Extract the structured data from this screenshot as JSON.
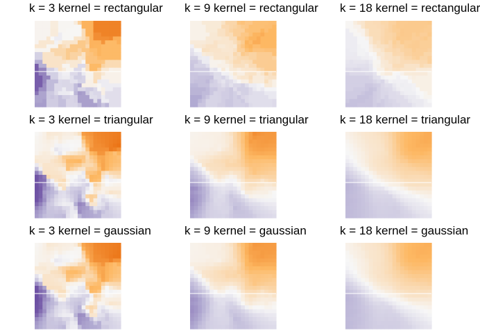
{
  "chart_data": {
    "type": "heatmap",
    "layout": {
      "rows": 3,
      "cols": 3
    },
    "colormap": [
      "#5e3c99",
      "#b2abd2",
      "#f7f7f7",
      "#fdb863",
      "#e66101"
    ],
    "panels": [
      {
        "title": "k = 3 kernel = rectangular",
        "k": 3,
        "kernel": "rectangular"
      },
      {
        "title": "k = 9 kernel = rectangular",
        "k": 9,
        "kernel": "rectangular"
      },
      {
        "title": "k = 18 kernel = rectangular",
        "k": 18,
        "kernel": "rectangular"
      },
      {
        "title": "k = 3 kernel = triangular",
        "k": 3,
        "kernel": "triangular"
      },
      {
        "title": "k = 9 kernel = triangular",
        "k": 9,
        "kernel": "triangular"
      },
      {
        "title": "k = 18 kernel = triangular",
        "k": 18,
        "kernel": "triangular"
      },
      {
        "title": "k = 3 kernel = gaussian",
        "k": 3,
        "kernel": "gaussian"
      },
      {
        "title": "k = 9 kernel = gaussian",
        "k": 9,
        "kernel": "gaussian"
      },
      {
        "title": "k = 18 kernel = gaussian",
        "k": 18,
        "kernel": "gaussian"
      }
    ]
  }
}
